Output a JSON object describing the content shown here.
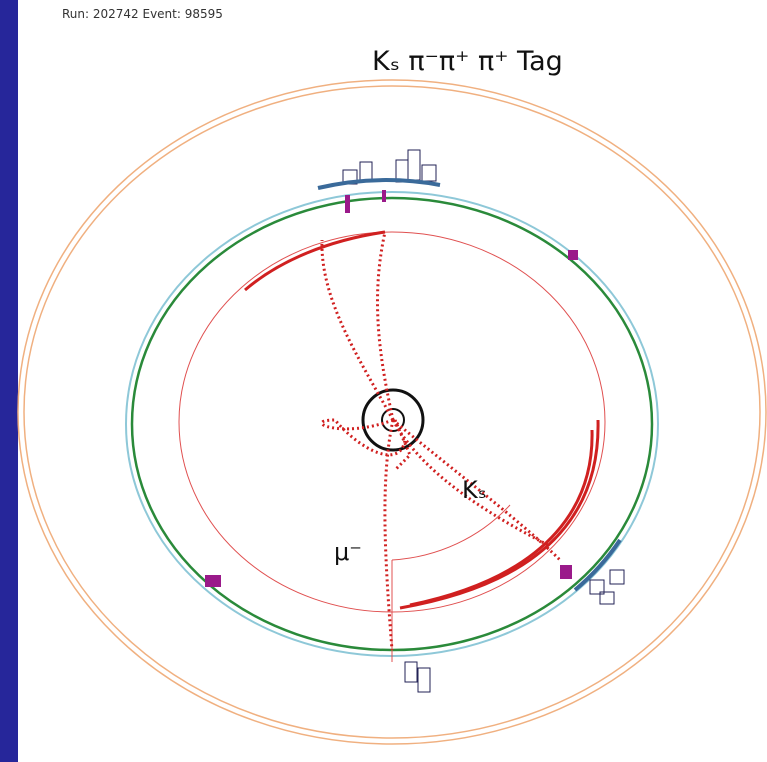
{
  "header": {
    "run_event": "Run: 202742 Event: 98595",
    "title": "Kₛ π⁻π⁺ π⁺  Tag"
  },
  "labels": {
    "ks": "Kₛ",
    "mu": "μ⁻"
  }
}
